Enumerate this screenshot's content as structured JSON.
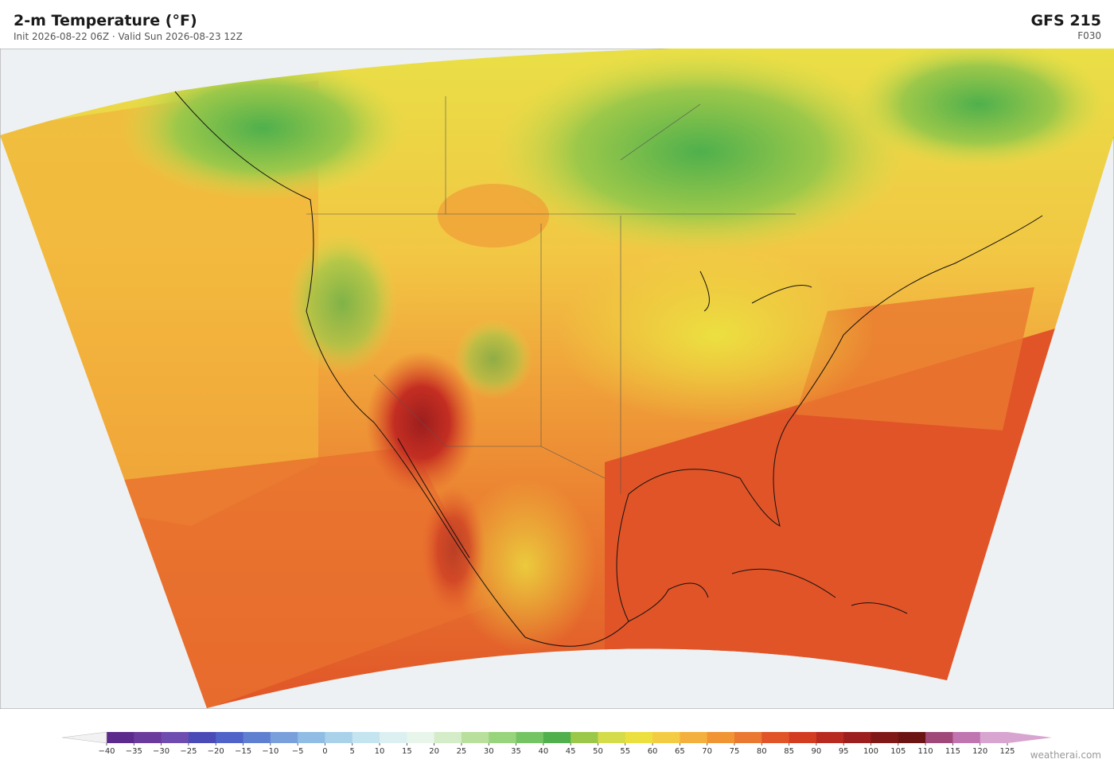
{
  "header": {
    "title": "2-m Temperature  (°F)",
    "subtitle": "Init 2026-08-22 06Z  ·  Valid Sun 2026-08-23 12Z",
    "model": "GFS  215",
    "run": "F030"
  },
  "colorbar": {
    "ticks": [
      {
        "value": -40,
        "label": "−40"
      },
      {
        "value": -35,
        "label": "−35"
      },
      {
        "value": -30,
        "label": "−30"
      },
      {
        "value": -25,
        "label": "−25"
      },
      {
        "value": -20,
        "label": "−20"
      },
      {
        "value": -15,
        "label": "−15"
      },
      {
        "value": -10,
        "label": "−10"
      },
      {
        "value": -5,
        "label": "−5"
      },
      0,
      5,
      10,
      15,
      20,
      25,
      30,
      35,
      40,
      45,
      50,
      55,
      60,
      65,
      70,
      75,
      80,
      85,
      90,
      95,
      100,
      105,
      110,
      115,
      120,
      125
    ],
    "colors": [
      "#5b2a8c",
      "#6a3a9c",
      "#6f4db0",
      "#4b4bb8",
      "#4f63c8",
      "#5f80d0",
      "#7aa0dc",
      "#8fbde3",
      "#a9d2ea",
      "#c4e4f0",
      "#dcf0f2",
      "#e8f5ea",
      "#d4ecc8",
      "#b8e09c",
      "#98d47c",
      "#74c464",
      "#4fb04c",
      "#9cc84a",
      "#d4dc4a",
      "#ece040",
      "#f4cc44",
      "#f4b03c",
      "#f09434",
      "#ea7830",
      "#e05428",
      "#d43c22",
      "#b82a20",
      "#9c1e1e",
      "#801818",
      "#6c1414",
      "#a04878",
      "#c074b0",
      "#d8a4d0"
    ],
    "under_color": "#f2f2f2",
    "over_color": "#d8a4d0"
  },
  "footer": {
    "credit": "weatherai.com"
  }
}
